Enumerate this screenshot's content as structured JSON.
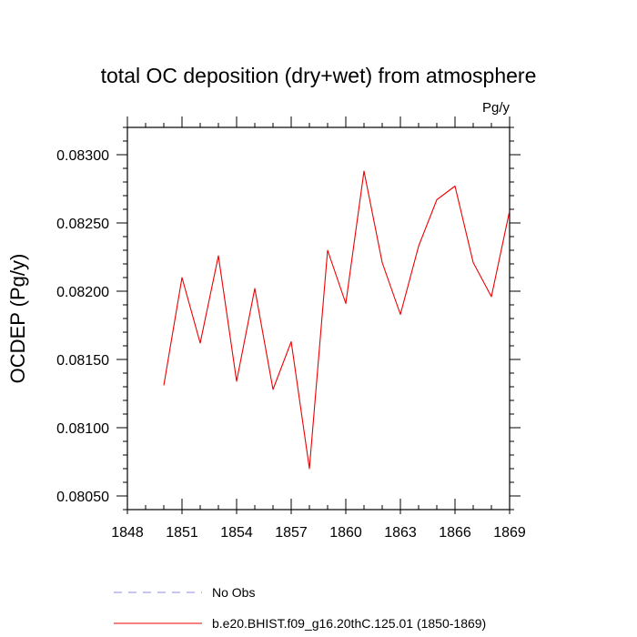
{
  "chart_data": {
    "type": "line",
    "title": "total OC deposition (dry+wet) from atmosphere",
    "units_label": "Pg/y",
    "ylabel": "OCDEP  (Pg/y)",
    "xlabel": "",
    "xlim": [
      1848,
      1869
    ],
    "ylim": [
      0.0804,
      0.0832
    ],
    "x_ticks": [
      1848,
      1851,
      1854,
      1857,
      1860,
      1863,
      1866,
      1869
    ],
    "x_tick_labels": [
      "1848",
      "1851",
      "1854",
      "1857",
      "1860",
      "1863",
      "1866",
      "1869"
    ],
    "y_ticks": [
      0.0805,
      0.081,
      0.0815,
      0.082,
      0.0825,
      0.083
    ],
    "y_tick_labels": [
      "0.08050",
      "0.08100",
      "0.08150",
      "0.08200",
      "0.08250",
      "0.08300"
    ],
    "grid": false,
    "legend_position": "bottom",
    "series": [
      {
        "name": "No Obs",
        "color": "#8888ee",
        "dash": "dashed",
        "x": [],
        "values": []
      },
      {
        "name": "b.e20.BHIST.f09_g16.20thC.125.01 (1850-1869)",
        "color": "#ee0000",
        "dash": "solid",
        "x": [
          1850,
          1851,
          1852,
          1853,
          1854,
          1855,
          1856,
          1857,
          1858,
          1859,
          1860,
          1861,
          1862,
          1863,
          1864,
          1865,
          1866,
          1867,
          1868,
          1869
        ],
        "values": [
          0.08131,
          0.0821,
          0.08162,
          0.08226,
          0.08134,
          0.08202,
          0.08128,
          0.08163,
          0.0807,
          0.0823,
          0.08191,
          0.08288,
          0.08221,
          0.08183,
          0.08233,
          0.08267,
          0.08277,
          0.08221,
          0.08196,
          0.08259
        ]
      }
    ]
  }
}
